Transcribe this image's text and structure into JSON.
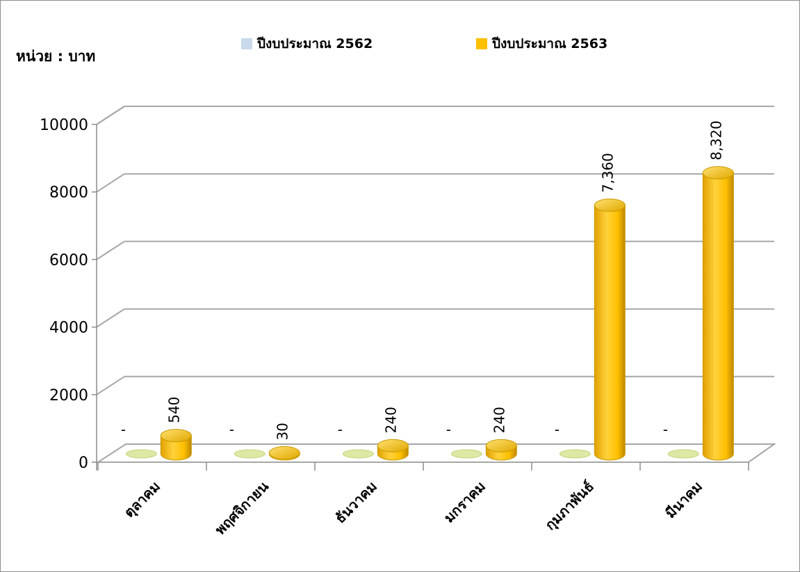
{
  "chart_data": {
    "type": "bar",
    "unit_label": "หน่วย : บาท",
    "categories": [
      "ตุลาคม",
      "พฤศจิกายน",
      "ธันวาคม",
      "มกราคม",
      "กุมภาพันธ์",
      "มีนาคม"
    ],
    "series": [
      {
        "name": "ปีงบประมาณ 2562",
        "color": "#c9d9ec",
        "values": [
          0,
          0,
          0,
          0,
          0,
          0
        ],
        "labels": [
          "-",
          "-",
          "-",
          "-",
          "-",
          "-"
        ]
      },
      {
        "name": "ปีงบประมาณ 2563",
        "color": "#ffc000",
        "values": [
          540,
          30,
          240,
          240,
          7360,
          8320
        ],
        "labels": [
          "540",
          "30",
          "240",
          "240",
          "7,360",
          "8,320"
        ]
      }
    ],
    "ylim": [
      0,
      10000
    ],
    "yticks": [
      "0",
      "2000",
      "4000",
      "6000",
      "8000",
      "10000"
    ],
    "grid": true,
    "legend_position": "top"
  }
}
